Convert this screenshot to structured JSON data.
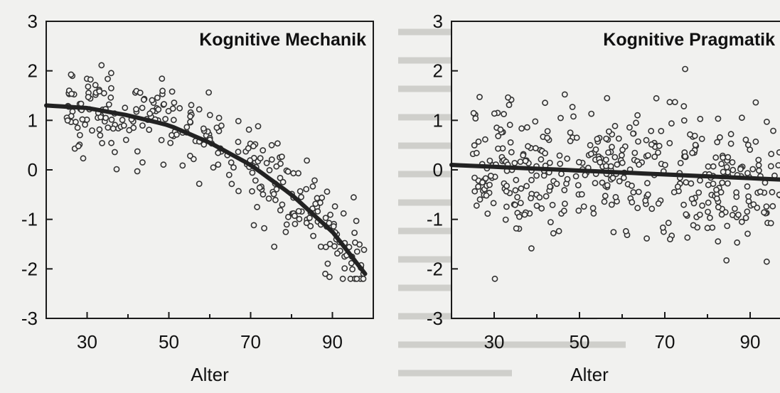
{
  "chart_data": [
    {
      "type": "scatter",
      "title": "Kognitive Mechanik",
      "xlabel": "Alter",
      "ylabel": "",
      "xlim": [
        20,
        100
      ],
      "ylim": [
        -3,
        3
      ],
      "xticks": [
        30,
        50,
        70,
        90
      ],
      "yticks": [
        3,
        2,
        1,
        0,
        -1,
        -2,
        -3
      ],
      "grid": false,
      "trend": {
        "x": [
          20,
          30,
          40,
          50,
          60,
          70,
          80,
          90,
          98
        ],
        "y": [
          1.3,
          1.25,
          1.1,
          0.9,
          0.55,
          0.1,
          -0.5,
          -1.25,
          -2.1
        ]
      },
      "point_cloud": {
        "count": 300,
        "x_range": [
          25,
          98
        ],
        "spread": 0.45
      }
    },
    {
      "type": "scatter",
      "title": "Kognitive Pragmatik",
      "xlabel": "Alter",
      "ylabel": "",
      "xlim": [
        20,
        98
      ],
      "ylim": [
        -3,
        3
      ],
      "xticks": [
        30,
        50,
        70,
        90
      ],
      "yticks": [
        3,
        2,
        1,
        0,
        -1,
        -2,
        -3
      ],
      "grid": false,
      "trend": {
        "x": [
          20,
          98
        ],
        "y": [
          0.1,
          -0.2
        ]
      },
      "point_cloud": {
        "count": 420,
        "x_range": [
          25,
          97
        ],
        "spread": 0.7
      }
    }
  ]
}
